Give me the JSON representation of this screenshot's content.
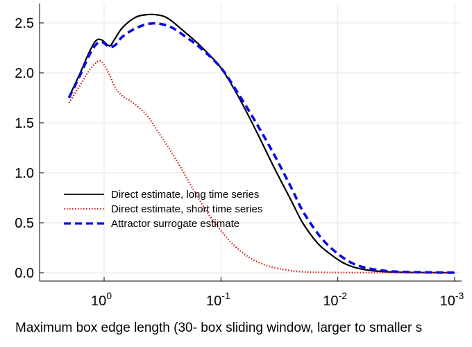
{
  "chart_data": {
    "type": "line",
    "title": "",
    "xlabel": "Maximum box edge length (30- box sliding window, larger to smaller s",
    "ylabel": "",
    "x_scale": "log",
    "x_reversed": true,
    "xlim": [
      2.3,
      0.001
    ],
    "ylim": [
      -0.1,
      2.65
    ],
    "grid": true,
    "legend_position": "center-left",
    "x_ticks": [
      {
        "value": 1,
        "base": "10",
        "exp": "0"
      },
      {
        "value": 0.1,
        "base": "10",
        "exp": "-1"
      },
      {
        "value": 0.01,
        "base": "10",
        "exp": "-2"
      },
      {
        "value": 0.001,
        "base": "10",
        "exp": "-3"
      }
    ],
    "y_ticks": [
      {
        "value": 0.0,
        "label": "0.0"
      },
      {
        "value": 0.5,
        "label": "0.5"
      },
      {
        "value": 1.0,
        "label": "1.0"
      },
      {
        "value": 1.5,
        "label": "1.5"
      },
      {
        "value": 2.0,
        "label": "2.0"
      },
      {
        "value": 2.5,
        "label": "2.5"
      }
    ],
    "series": [
      {
        "name": "Direct estimate, long time series",
        "color": "#000000",
        "style": "solid",
        "points": [
          [
            2.0,
            1.76
          ],
          [
            1.6,
            2.0
          ],
          [
            1.35,
            2.2
          ],
          [
            1.18,
            2.32
          ],
          [
            1.05,
            2.33
          ],
          [
            0.9,
            2.27
          ],
          [
            0.82,
            2.33
          ],
          [
            0.7,
            2.45
          ],
          [
            0.55,
            2.55
          ],
          [
            0.45,
            2.58
          ],
          [
            0.35,
            2.58
          ],
          [
            0.28,
            2.54
          ],
          [
            0.2,
            2.4
          ],
          [
            0.15,
            2.27
          ],
          [
            0.1,
            2.05
          ],
          [
            0.07,
            1.75
          ],
          [
            0.05,
            1.42
          ],
          [
            0.035,
            1.05
          ],
          [
            0.025,
            0.72
          ],
          [
            0.02,
            0.5
          ],
          [
            0.015,
            0.3
          ],
          [
            0.012,
            0.2
          ],
          [
            0.009,
            0.1
          ],
          [
            0.007,
            0.05
          ],
          [
            0.005,
            0.02
          ],
          [
            0.003,
            0.005
          ],
          [
            0.001,
            0.0
          ]
        ]
      },
      {
        "name": "Direct estimate, short time series",
        "color": "#cc1f1f",
        "style": "dotted",
        "points": [
          [
            2.0,
            1.7
          ],
          [
            1.6,
            1.88
          ],
          [
            1.35,
            2.02
          ],
          [
            1.18,
            2.1
          ],
          [
            1.08,
            2.12
          ],
          [
            1.0,
            2.08
          ],
          [
            0.9,
            1.98
          ],
          [
            0.8,
            1.85
          ],
          [
            0.7,
            1.77
          ],
          [
            0.6,
            1.72
          ],
          [
            0.5,
            1.65
          ],
          [
            0.42,
            1.56
          ],
          [
            0.35,
            1.42
          ],
          [
            0.28,
            1.25
          ],
          [
            0.22,
            1.05
          ],
          [
            0.17,
            0.82
          ],
          [
            0.13,
            0.6
          ],
          [
            0.1,
            0.42
          ],
          [
            0.075,
            0.26
          ],
          [
            0.055,
            0.14
          ],
          [
            0.04,
            0.07
          ],
          [
            0.03,
            0.035
          ],
          [
            0.02,
            0.01
          ],
          [
            0.01,
            0.002
          ],
          [
            0.001,
            0.0
          ]
        ]
      },
      {
        "name": "Attractor surrogate estimate",
        "color": "#0a0ae6",
        "style": "dashed",
        "points": [
          [
            2.0,
            1.75
          ],
          [
            1.6,
            1.98
          ],
          [
            1.35,
            2.17
          ],
          [
            1.18,
            2.28
          ],
          [
            1.05,
            2.31
          ],
          [
            0.9,
            2.26
          ],
          [
            0.8,
            2.28
          ],
          [
            0.7,
            2.36
          ],
          [
            0.55,
            2.44
          ],
          [
            0.42,
            2.49
          ],
          [
            0.33,
            2.49
          ],
          [
            0.26,
            2.45
          ],
          [
            0.2,
            2.36
          ],
          [
            0.15,
            2.25
          ],
          [
            0.1,
            2.05
          ],
          [
            0.07,
            1.78
          ],
          [
            0.05,
            1.5
          ],
          [
            0.035,
            1.18
          ],
          [
            0.025,
            0.85
          ],
          [
            0.02,
            0.62
          ],
          [
            0.015,
            0.4
          ],
          [
            0.012,
            0.27
          ],
          [
            0.009,
            0.15
          ],
          [
            0.007,
            0.08
          ],
          [
            0.005,
            0.035
          ],
          [
            0.003,
            0.01
          ],
          [
            0.001,
            0.0
          ]
        ]
      }
    ]
  }
}
